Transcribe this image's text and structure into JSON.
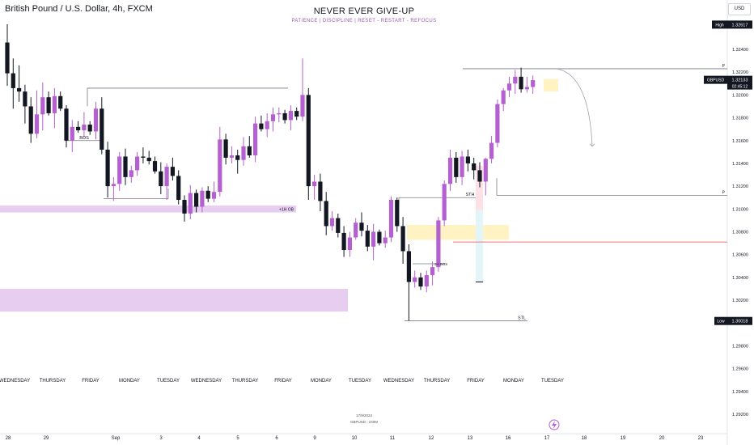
{
  "header": {
    "symbol_title": "British Pound / U.S. Dollar, 4h, FXCM",
    "center_title": "NEVER EVER GIVE-UP",
    "center_subtitle": "PATIENCE  |  DISCIPLINE  |  RESET - RESTART - REFOCUS",
    "currency": "USD"
  },
  "footer": {
    "date": "17/9/2024",
    "symbol_tf": "GBPUSD : 240M"
  },
  "colors": {
    "bull": "#b460d0",
    "bear": "#131722",
    "zone_purple": "#e7cdf0",
    "zone_yellow": "#fff3c4",
    "zone_pink": "#fde1e6",
    "zone_cyan": "#e3f5f8",
    "level_red": "#f0787e",
    "level_gray": "#787b86",
    "price_tag": "#131722"
  },
  "chart_data": {
    "type": "candlestick",
    "title": "British Pound / U.S. Dollar, 4h, FXCM",
    "ylim": [
      1.291,
      1.3268
    ],
    "y_ticks": [
      "1.32400",
      "1.32200",
      "1.32000",
      "1.31800",
      "1.31600",
      "1.31400",
      "1.31200",
      "1.31000",
      "1.30800",
      "1.30600",
      "1.30400",
      "1.30200",
      "1.30000",
      "1.29800",
      "1.29600",
      "1.29400",
      "1.29200"
    ],
    "x_date_ticks": [
      "28",
      "29",
      "Sep",
      "3",
      "4",
      "5",
      "6",
      "9",
      "10",
      "11",
      "12",
      "13",
      "16",
      "17",
      "18",
      "19",
      "20",
      "23"
    ],
    "x_day_labels": [
      "WEDNESDAY",
      "THURSDAY",
      "FRIDAY",
      "MONDAY",
      "TUESDAY",
      "WEDNESDAY",
      "THURSDAY",
      "FRIDAY",
      "MONDAY",
      "TUESDAY",
      "WEDNESDAY",
      "THURSDAY",
      "FRIDAY",
      "MONDAY",
      "TUESDAY"
    ],
    "price_labels": [
      {
        "label": "High",
        "value": "1.32617"
      },
      {
        "label": "GBPUSD",
        "value": "1.32133",
        "sub": "02:45:12"
      },
      {
        "label": "Low",
        "value": "1.30018"
      }
    ],
    "annotations": [
      "BOS",
      "+1H OB",
      "STH",
      "STL",
      "1H BOS",
      "P",
      "P"
    ],
    "candles": [
      {
        "o": 1.3246,
        "h": 1.3262,
        "l": 1.3208,
        "c": 1.3219
      },
      {
        "o": 1.3219,
        "h": 1.3232,
        "l": 1.3188,
        "c": 1.3206
      },
      {
        "o": 1.3206,
        "h": 1.3226,
        "l": 1.3194,
        "c": 1.3203
      },
      {
        "o": 1.3203,
        "h": 1.3209,
        "l": 1.3175,
        "c": 1.319
      },
      {
        "o": 1.319,
        "h": 1.3198,
        "l": 1.3158,
        "c": 1.3166
      },
      {
        "o": 1.3166,
        "h": 1.3204,
        "l": 1.3162,
        "c": 1.3183
      },
      {
        "o": 1.3183,
        "h": 1.3211,
        "l": 1.3169,
        "c": 1.3198
      },
      {
        "o": 1.3198,
        "h": 1.3203,
        "l": 1.3182,
        "c": 1.3184
      },
      {
        "o": 1.3184,
        "h": 1.3206,
        "l": 1.3171,
        "c": 1.3199
      },
      {
        "o": 1.3199,
        "h": 1.3203,
        "l": 1.3186,
        "c": 1.3188
      },
      {
        "o": 1.3188,
        "h": 1.3191,
        "l": 1.3154,
        "c": 1.316
      },
      {
        "o": 1.316,
        "h": 1.3178,
        "l": 1.315,
        "c": 1.3172
      },
      {
        "o": 1.3172,
        "h": 1.3177,
        "l": 1.3167,
        "c": 1.3169
      },
      {
        "o": 1.3169,
        "h": 1.3185,
        "l": 1.3163,
        "c": 1.3174
      },
      {
        "o": 1.3174,
        "h": 1.3177,
        "l": 1.3165,
        "c": 1.3168
      },
      {
        "o": 1.3168,
        "h": 1.3194,
        "l": 1.3161,
        "c": 1.3188
      },
      {
        "o": 1.3188,
        "h": 1.3198,
        "l": 1.3148,
        "c": 1.3152
      },
      {
        "o": 1.3152,
        "h": 1.3159,
        "l": 1.311,
        "c": 1.312
      },
      {
        "o": 1.312,
        "h": 1.3128,
        "l": 1.3107,
        "c": 1.3122
      },
      {
        "o": 1.3122,
        "h": 1.315,
        "l": 1.3116,
        "c": 1.3146
      },
      {
        "o": 1.3146,
        "h": 1.3153,
        "l": 1.3121,
        "c": 1.3128
      },
      {
        "o": 1.3128,
        "h": 1.3138,
        "l": 1.3123,
        "c": 1.3134
      },
      {
        "o": 1.3134,
        "h": 1.315,
        "l": 1.3129,
        "c": 1.3146
      },
      {
        "o": 1.3146,
        "h": 1.3154,
        "l": 1.314,
        "c": 1.3145
      },
      {
        "o": 1.3145,
        "h": 1.3151,
        "l": 1.3139,
        "c": 1.3142
      },
      {
        "o": 1.3142,
        "h": 1.3146,
        "l": 1.3131,
        "c": 1.3133
      },
      {
        "o": 1.3133,
        "h": 1.3141,
        "l": 1.3113,
        "c": 1.312
      },
      {
        "o": 1.312,
        "h": 1.314,
        "l": 1.3108,
        "c": 1.3137
      },
      {
        "o": 1.3137,
        "h": 1.3145,
        "l": 1.3125,
        "c": 1.3129
      },
      {
        "o": 1.3129,
        "h": 1.3134,
        "l": 1.3104,
        "c": 1.3108
      },
      {
        "o": 1.3108,
        "h": 1.3112,
        "l": 1.3089,
        "c": 1.3096
      },
      {
        "o": 1.3096,
        "h": 1.3121,
        "l": 1.3091,
        "c": 1.3114
      },
      {
        "o": 1.3114,
        "h": 1.3117,
        "l": 1.3097,
        "c": 1.3102
      },
      {
        "o": 1.3102,
        "h": 1.3119,
        "l": 1.3097,
        "c": 1.3116
      },
      {
        "o": 1.3116,
        "h": 1.312,
        "l": 1.3106,
        "c": 1.3109
      },
      {
        "o": 1.3109,
        "h": 1.3124,
        "l": 1.3106,
        "c": 1.3115
      },
      {
        "o": 1.3115,
        "h": 1.3172,
        "l": 1.3111,
        "c": 1.3161
      },
      {
        "o": 1.3161,
        "h": 1.3166,
        "l": 1.3139,
        "c": 1.3145
      },
      {
        "o": 1.3145,
        "h": 1.3155,
        "l": 1.314,
        "c": 1.3147
      },
      {
        "o": 1.3147,
        "h": 1.3152,
        "l": 1.3131,
        "c": 1.3143
      },
      {
        "o": 1.3143,
        "h": 1.3163,
        "l": 1.3138,
        "c": 1.3155
      },
      {
        "o": 1.3155,
        "h": 1.3164,
        "l": 1.3145,
        "c": 1.3147
      },
      {
        "o": 1.3147,
        "h": 1.3181,
        "l": 1.3141,
        "c": 1.3175
      },
      {
        "o": 1.3175,
        "h": 1.3182,
        "l": 1.3168,
        "c": 1.317
      },
      {
        "o": 1.317,
        "h": 1.3184,
        "l": 1.3163,
        "c": 1.3177
      },
      {
        "o": 1.3177,
        "h": 1.3189,
        "l": 1.3168,
        "c": 1.3183
      },
      {
        "o": 1.3183,
        "h": 1.3189,
        "l": 1.3176,
        "c": 1.3184
      },
      {
        "o": 1.3184,
        "h": 1.3187,
        "l": 1.3175,
        "c": 1.3178
      },
      {
        "o": 1.3178,
        "h": 1.3191,
        "l": 1.3169,
        "c": 1.3186
      },
      {
        "o": 1.3186,
        "h": 1.3189,
        "l": 1.3178,
        "c": 1.3181
      },
      {
        "o": 1.3181,
        "h": 1.3232,
        "l": 1.3177,
        "c": 1.32
      },
      {
        "o": 1.32,
        "h": 1.3206,
        "l": 1.3108,
        "c": 1.312
      },
      {
        "o": 1.312,
        "h": 1.313,
        "l": 1.3108,
        "c": 1.3124
      },
      {
        "o": 1.3124,
        "h": 1.3131,
        "l": 1.3098,
        "c": 1.3107
      },
      {
        "o": 1.3107,
        "h": 1.3115,
        "l": 1.3077,
        "c": 1.3085
      },
      {
        "o": 1.3085,
        "h": 1.3098,
        "l": 1.3081,
        "c": 1.3092
      },
      {
        "o": 1.3092,
        "h": 1.3096,
        "l": 1.3075,
        "c": 1.3079
      },
      {
        "o": 1.3079,
        "h": 1.3085,
        "l": 1.3058,
        "c": 1.3064
      },
      {
        "o": 1.3064,
        "h": 1.308,
        "l": 1.3058,
        "c": 1.3075
      },
      {
        "o": 1.3075,
        "h": 1.3092,
        "l": 1.3073,
        "c": 1.3088
      },
      {
        "o": 1.3088,
        "h": 1.3097,
        "l": 1.3076,
        "c": 1.3081
      },
      {
        "o": 1.3081,
        "h": 1.3086,
        "l": 1.3063,
        "c": 1.3067
      },
      {
        "o": 1.3067,
        "h": 1.3087,
        "l": 1.3055,
        "c": 1.308
      },
      {
        "o": 1.308,
        "h": 1.3082,
        "l": 1.3068,
        "c": 1.307
      },
      {
        "o": 1.307,
        "h": 1.3081,
        "l": 1.3066,
        "c": 1.3075
      },
      {
        "o": 1.3075,
        "h": 1.3111,
        "l": 1.3071,
        "c": 1.3108
      },
      {
        "o": 1.3108,
        "h": 1.311,
        "l": 1.308,
        "c": 1.3085
      },
      {
        "o": 1.3085,
        "h": 1.3093,
        "l": 1.3052,
        "c": 1.3063
      },
      {
        "o": 1.3063,
        "h": 1.3069,
        "l": 1.3002,
        "c": 1.3036
      },
      {
        "o": 1.3036,
        "h": 1.3046,
        "l": 1.3031,
        "c": 1.304
      },
      {
        "o": 1.304,
        "h": 1.3044,
        "l": 1.3029,
        "c": 1.3032
      },
      {
        "o": 1.3032,
        "h": 1.3046,
        "l": 1.3027,
        "c": 1.3042
      },
      {
        "o": 1.3042,
        "h": 1.3054,
        "l": 1.3033,
        "c": 1.3049
      },
      {
        "o": 1.3049,
        "h": 1.3093,
        "l": 1.3045,
        "c": 1.309
      },
      {
        "o": 1.309,
        "h": 1.3125,
        "l": 1.3085,
        "c": 1.3122
      },
      {
        "o": 1.3122,
        "h": 1.3152,
        "l": 1.3116,
        "c": 1.3145
      },
      {
        "o": 1.3145,
        "h": 1.315,
        "l": 1.3123,
        "c": 1.3128
      },
      {
        "o": 1.3128,
        "h": 1.3151,
        "l": 1.3121,
        "c": 1.3146
      },
      {
        "o": 1.3146,
        "h": 1.3152,
        "l": 1.3133,
        "c": 1.314
      },
      {
        "o": 1.314,
        "h": 1.3145,
        "l": 1.3126,
        "c": 1.3134
      },
      {
        "o": 1.3134,
        "h": 1.3141,
        "l": 1.3119,
        "c": 1.3124
      },
      {
        "o": 1.3124,
        "h": 1.3145,
        "l": 1.3112,
        "c": 1.3144
      },
      {
        "o": 1.3144,
        "h": 1.3164,
        "l": 1.314,
        "c": 1.3158
      },
      {
        "o": 1.3158,
        "h": 1.3196,
        "l": 1.3154,
        "c": 1.3192
      },
      {
        "o": 1.3192,
        "h": 1.3206,
        "l": 1.3186,
        "c": 1.3204
      },
      {
        "o": 1.3204,
        "h": 1.3216,
        "l": 1.3198,
        "c": 1.321
      },
      {
        "o": 1.321,
        "h": 1.3222,
        "l": 1.3201,
        "c": 1.3216
      },
      {
        "o": 1.3216,
        "h": 1.3224,
        "l": 1.3202,
        "c": 1.3205
      },
      {
        "o": 1.3205,
        "h": 1.3216,
        "l": 1.3202,
        "c": 1.3207
      },
      {
        "o": 1.3207,
        "h": 1.3217,
        "l": 1.3201,
        "c": 1.3213
      }
    ]
  }
}
